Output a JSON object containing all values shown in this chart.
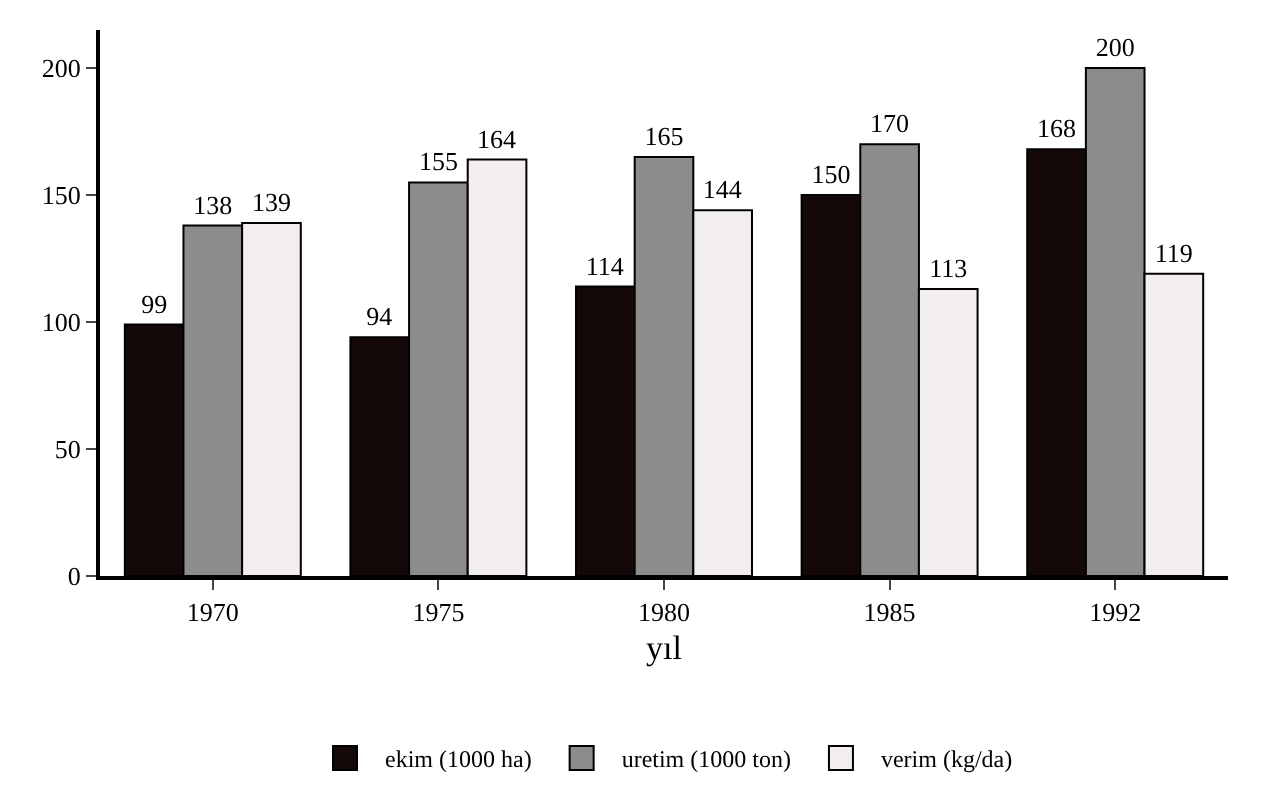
{
  "chart_data": {
    "type": "bar",
    "xlabel": "yıl",
    "categories": [
      "1970",
      "1975",
      "1980",
      "1985",
      "1992"
    ],
    "series": [
      {
        "name": "ekim (1000 ha)",
        "color": "#140808",
        "values": [
          99,
          94,
          114,
          150,
          168
        ]
      },
      {
        "name": "uretim (1000 ton)",
        "color": "#8c8c8c",
        "values": [
          138,
          155,
          165,
          170,
          200
        ]
      },
      {
        "name": "verim (kg/da)",
        "color": "#f2eeee",
        "values": [
          139,
          164,
          144,
          113,
          119
        ]
      }
    ],
    "ylim": [
      0,
      215
    ],
    "yticks": [
      0,
      50,
      100,
      150,
      200
    ],
    "data_labels": true,
    "legend": "bottom"
  }
}
